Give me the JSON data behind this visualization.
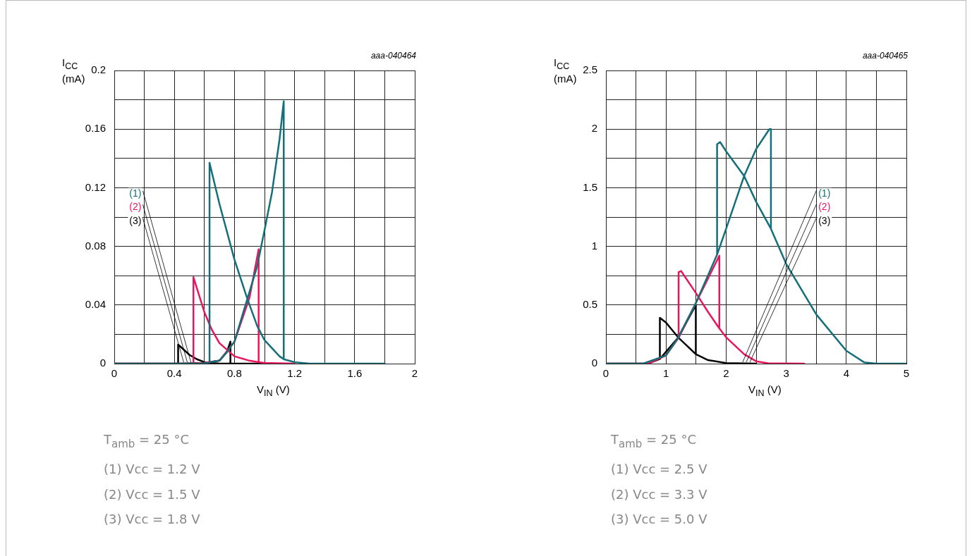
{
  "chart_data": [
    {
      "type": "line",
      "ylabel": "I$_{CC}$ (mA)",
      "xlabel": "V$_{IN}$ (V)",
      "marker": "none",
      "legend": "left",
      "grid": true,
      "xlim": [
        0,
        2
      ],
      "xticks": [
        0,
        {
          "value": 0.2,
          "label": null
        },
        0.4,
        {
          "value": 0.6,
          "label": null
        },
        0.8,
        {
          "value": 1.0,
          "label": null
        },
        1.2,
        {
          "value": 1.4,
          "label": null
        },
        1.6,
        {
          "value": 1.8,
          "label": null
        },
        2
      ],
      "ylim": [
        0,
        0.2
      ],
      "yticks": [
        0,
        {
          "value": 0.02,
          "label": null
        },
        0.04,
        {
          "value": 0.06,
          "label": null
        },
        0.08,
        {
          "value": 0.1,
          "label": null
        },
        0.12,
        {
          "value": 0.14,
          "label": null
        },
        0.16,
        {
          "value": 0.18,
          "label": null
        },
        0.2
      ],
      "annotations": [
        "aaa-040464",
        "T$_{amb}$ = 25 °C",
        "(1) Vcc = 1.2 V",
        "(2) Vcc = 1.5 V",
        "(3) Vcc = 1.8 V"
      ],
      "series": [
        {
          "name": "(1)",
          "color": "#146f7a",
          "x": [
            0,
            0.58,
            0.7,
            0.75,
            0.8,
            0.85,
            0.9,
            0.95,
            1.0,
            1.05,
            1.1,
            1.128,
            1.128,
            1.2,
            1.3,
            1.8,
            null,
            0.634,
            0.634,
            0.7,
            0.8,
            0.883,
            0.95,
            1.0,
            1.1,
            1.128
          ],
          "values": [
            0,
            0,
            0.002,
            0.008,
            0.015,
            0.032,
            0.049,
            0.066,
            0.091,
            0.117,
            0.153,
            0.179,
            0.003,
            0.001,
            0,
            0,
            null,
            0.001,
            0.137,
            0.109,
            0.071,
            0.045,
            0.026,
            0.016,
            0.005,
            0.003
          ]
        },
        {
          "name": "(2)",
          "color": "#e8175d",
          "x": [
            0,
            0.527,
            0.6,
            0.7,
            0.8,
            0.9,
            0.961,
            0.961,
            1.0,
            1.2,
            null,
            0.527,
            0.527,
            0.6,
            0.65,
            0.7,
            0.8,
            0.9,
            0.961
          ],
          "values": [
            0,
            0,
            0.0005,
            0.002,
            0.015,
            0.045,
            0.078,
            0.001,
            0.0005,
            0,
            null,
            0,
            0.059,
            0.035,
            0.023,
            0.014,
            0.005,
            0.002,
            0.001
          ]
        },
        {
          "name": "(3)",
          "color": "#000000",
          "x": [
            0,
            0.425,
            0.6,
            0.7,
            0.75,
            0.773,
            0.773,
            0.9,
            1.0,
            null,
            0.425,
            0.425,
            0.5,
            0.55,
            0.6,
            0.7,
            0.773
          ],
          "values": [
            0,
            0,
            0.0005,
            0.002,
            0.008,
            0.015,
            0,
            0,
            0,
            null,
            0,
            0.013,
            0.006,
            0.003,
            0.001,
            0,
            0
          ]
        }
      ]
    },
    {
      "type": "line",
      "ylabel": "I$_{CC}$ (mA)",
      "xlabel": "V$_{IN}$ (V)",
      "marker": "none",
      "legend": "right",
      "grid": true,
      "xlim": [
        0,
        5
      ],
      "xticks": [
        0,
        {
          "value": 0.5,
          "label": null
        },
        1,
        {
          "value": 1.5,
          "label": null
        },
        2,
        {
          "value": 2.5,
          "label": null
        },
        3,
        {
          "value": 3.5,
          "label": null
        },
        4,
        {
          "value": 4.5,
          "label": null
        },
        5
      ],
      "ylim": [
        0,
        2.5
      ],
      "yticks": [
        0,
        {
          "value": 0.25,
          "label": null
        },
        0.5,
        {
          "value": 0.75,
          "label": null
        },
        1,
        {
          "value": 1.25,
          "label": null
        },
        1.5,
        {
          "value": 1.75,
          "label": null
        },
        2,
        {
          "value": 2.25,
          "label": null
        },
        2.5
      ],
      "annotations": [
        "aaa-040465",
        "T$_{amb}$ = 25 °C",
        "(1) Vcc = 2.5 V",
        "(2) Vcc = 3.3 V",
        "(3) Vcc = 5.0 V"
      ],
      "series": [
        {
          "name": "(1)",
          "color": "#146f7a",
          "x": [
            0,
            0.62,
            1.0,
            1.2,
            1.5,
            1.85,
            2.0,
            2.3,
            2.5,
            2.72,
            2.746,
            2.746,
            3.0,
            3.5,
            4.0,
            4.3,
            4.5,
            5,
            null,
            1.85,
            1.85,
            1.9,
            2.0,
            2.3,
            2.5,
            2.746
          ],
          "values": [
            0,
            0,
            0.07,
            0.22,
            0.52,
            0.93,
            1.15,
            1.6,
            1.83,
            2.0,
            2.0,
            1.15,
            0.85,
            0.42,
            0.11,
            0.01,
            0,
            0,
            null,
            0.93,
            1.87,
            1.89,
            1.81,
            1.6,
            1.38,
            1.15
          ]
        },
        {
          "name": "(2)",
          "color": "#e8175d",
          "x": [
            0,
            0.7,
            1.0,
            1.21,
            1.5,
            1.887,
            1.887,
            2.0,
            2.3,
            2.5,
            2.7,
            3.3,
            null,
            1.21,
            1.21,
            1.25,
            1.5,
            1.7,
            1.887
          ],
          "values": [
            0,
            0,
            0.07,
            0.22,
            0.52,
            0.92,
            0.3,
            0.225,
            0.08,
            0.02,
            0.003,
            0,
            null,
            0.22,
            0.78,
            0.79,
            0.6,
            0.44,
            0.3
          ]
        },
        {
          "name": "(3)",
          "color": "#000000",
          "x": [
            0,
            0.7,
            0.898,
            1.2,
            1.496,
            1.496,
            1.7,
            2.0,
            2.5,
            null,
            0.898,
            0.898,
            1.0,
            1.2,
            1.496
          ],
          "values": [
            0,
            0,
            0.04,
            0.22,
            0.5,
            0.08,
            0.03,
            0.005,
            0,
            null,
            0.04,
            0.39,
            0.35,
            0.225,
            0.08
          ]
        }
      ]
    }
  ]
}
